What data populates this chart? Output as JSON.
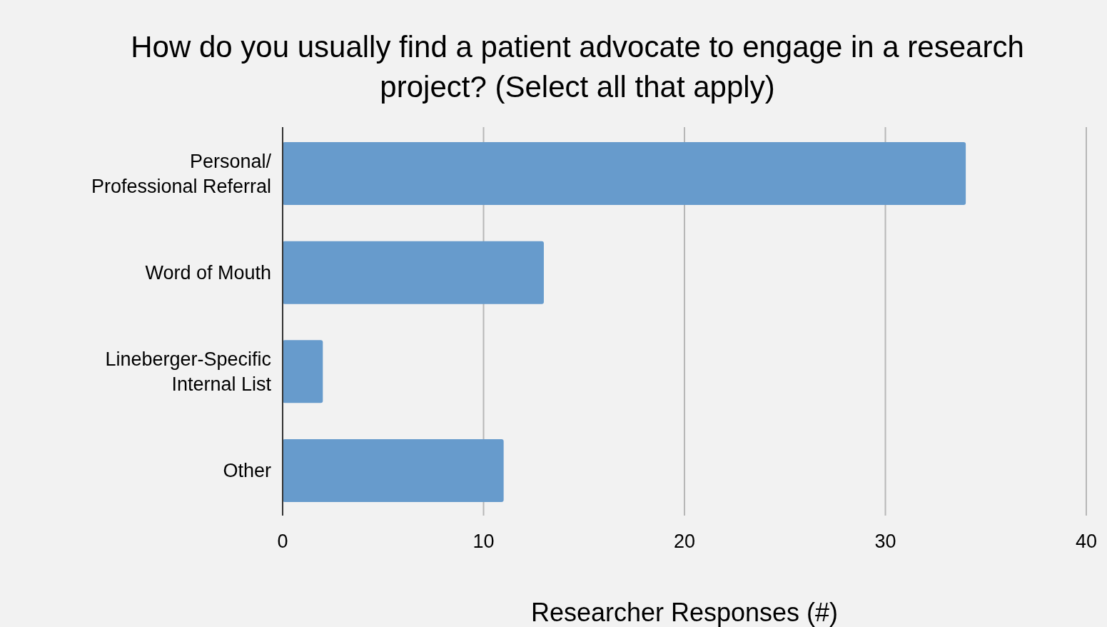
{
  "chart_data": {
    "type": "bar",
    "orientation": "horizontal",
    "title": "How do you usually find a patient advocate to engage in a research project? (Select all that apply)",
    "xlabel": "Researcher Responses (#)",
    "categories": [
      "Personal/ Professional Referral",
      "Word of Mouth",
      "Lineberger-Specific Internal List",
      "Other"
    ],
    "values": [
      34,
      13,
      2,
      11
    ],
    "color": "#679bcc",
    "xlim": [
      0,
      40
    ],
    "xticks": [
      0,
      10,
      20,
      30,
      40
    ],
    "grid": "x"
  }
}
